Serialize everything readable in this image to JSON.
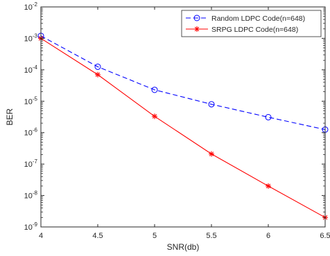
{
  "chart_data": {
    "type": "line",
    "title": "",
    "xlabel": "SNR(db)",
    "ylabel": "BER",
    "xscale": "linear",
    "yscale": "log",
    "xlim": [
      4,
      6.5
    ],
    "ylim": [
      1e-09,
      0.01
    ],
    "x_ticks": [
      4,
      4.5,
      5,
      5.5,
      6,
      6.5
    ],
    "x_tick_labels": [
      "4",
      "4.5",
      "5",
      "5.5",
      "6",
      "6.5"
    ],
    "y_ticks": [
      1e-09,
      1e-08,
      1e-07,
      1e-06,
      1e-05,
      0.0001,
      0.001,
      0.01
    ],
    "y_tick_labels": [
      {
        "base": "10",
        "exp": "-9"
      },
      {
        "base": "10",
        "exp": "-8"
      },
      {
        "base": "10",
        "exp": "-7"
      },
      {
        "base": "10",
        "exp": "-6"
      },
      {
        "base": "10",
        "exp": "-5"
      },
      {
        "base": "10",
        "exp": "-4"
      },
      {
        "base": "10",
        "exp": "-3"
      },
      {
        "base": "10",
        "exp": "-2"
      }
    ],
    "grid": false,
    "legend_position": "top-right",
    "x": [
      4,
      4.5,
      5,
      5.5,
      6,
      6.5
    ],
    "series": [
      {
        "name": "Random LDPC Code(n=648)",
        "color": "#0000ff",
        "line_style": "dashed",
        "marker": "circle",
        "values": [
          0.0012,
          0.000125,
          2.3e-05,
          8e-06,
          3.1e-06,
          1.25e-06
        ]
      },
      {
        "name": "SRPG LDPC Code(n=648)",
        "color": "#ff0000",
        "line_style": "solid",
        "marker": "asterisk",
        "values": [
          0.001,
          7e-05,
          3.3e-06,
          2.1e-07,
          2e-08,
          2e-09
        ]
      }
    ]
  }
}
